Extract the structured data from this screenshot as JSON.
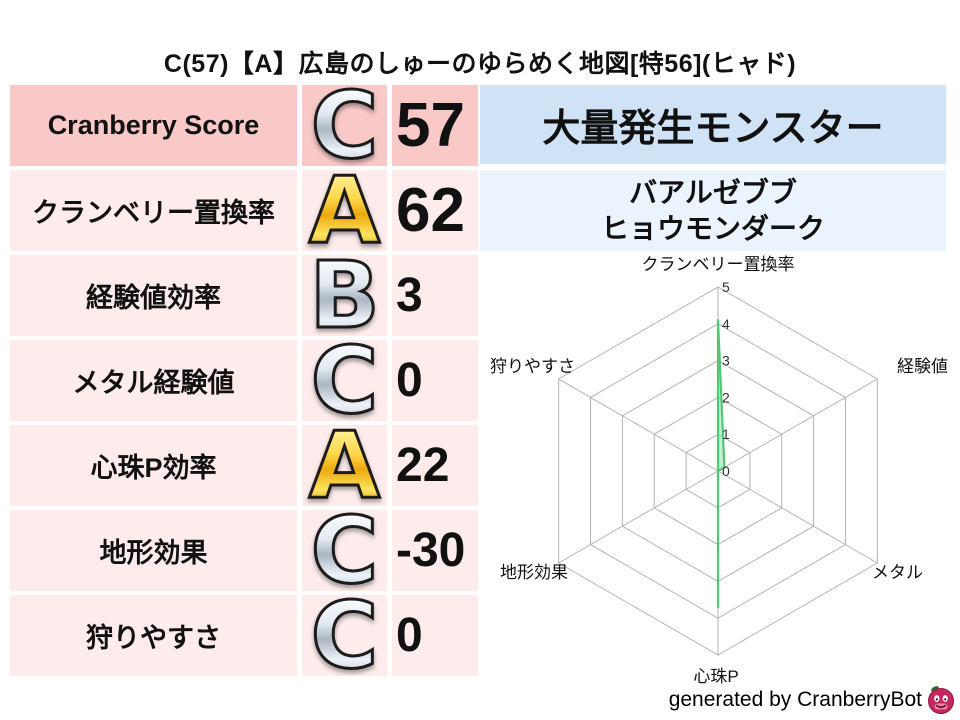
{
  "title": "C(57)【A】広島のしゅーのゆらめく地図[特56](ヒャド)",
  "stats_table": {
    "rows": [
      {
        "label": "Cranberry Score",
        "grade": "C",
        "grade_style": "silver",
        "value": "57"
      },
      {
        "label": "クランベリー置換率",
        "grade": "A",
        "grade_style": "gold",
        "value": "62"
      },
      {
        "label": "経験値効率",
        "grade": "B",
        "grade_style": "silver",
        "value": "3"
      },
      {
        "label": "メタル経験値",
        "grade": "C",
        "grade_style": "silver",
        "value": "0"
      },
      {
        "label": "心珠P効率",
        "grade": "A",
        "grade_style": "gold",
        "value": "22"
      },
      {
        "label": "地形効果",
        "grade": "C",
        "grade_style": "silver",
        "value": "-30"
      },
      {
        "label": "狩りやすさ",
        "grade": "C",
        "grade_style": "silver",
        "value": "0"
      }
    ]
  },
  "monster_panel": {
    "header": "大量発生モンスター",
    "monsters": [
      "バアルゼブブ",
      "ヒョウモンダーク"
    ]
  },
  "chart_data": {
    "type": "radar",
    "categories": [
      "クランベリー置換率",
      "経験値",
      "メタル",
      "心珠P",
      "地形効果",
      "狩りやすさ"
    ],
    "values": [
      4.1,
      0.2,
      0,
      3.7,
      0,
      0
    ],
    "ticks": [
      "0",
      "1",
      "2",
      "3",
      "4",
      "5"
    ],
    "max": 5,
    "grid_on": true,
    "grid_color": "#b3b3b3",
    "line_color": "#4fc878",
    "fill_color": "rgba(129,212,160,0.45)"
  },
  "footer": {
    "text": "generated by CranberryBot",
    "icon": "cranberry-mascot-icon"
  },
  "colors": {
    "row_header_pink": "#f9c9c8",
    "row_pink": "#fdeceb",
    "panel_blue": "#cfe2f6",
    "panel_light_blue": "#ebf3fc",
    "mascot_red": "#c5275f",
    "mascot_leaf_green": "#2e6b2e"
  }
}
